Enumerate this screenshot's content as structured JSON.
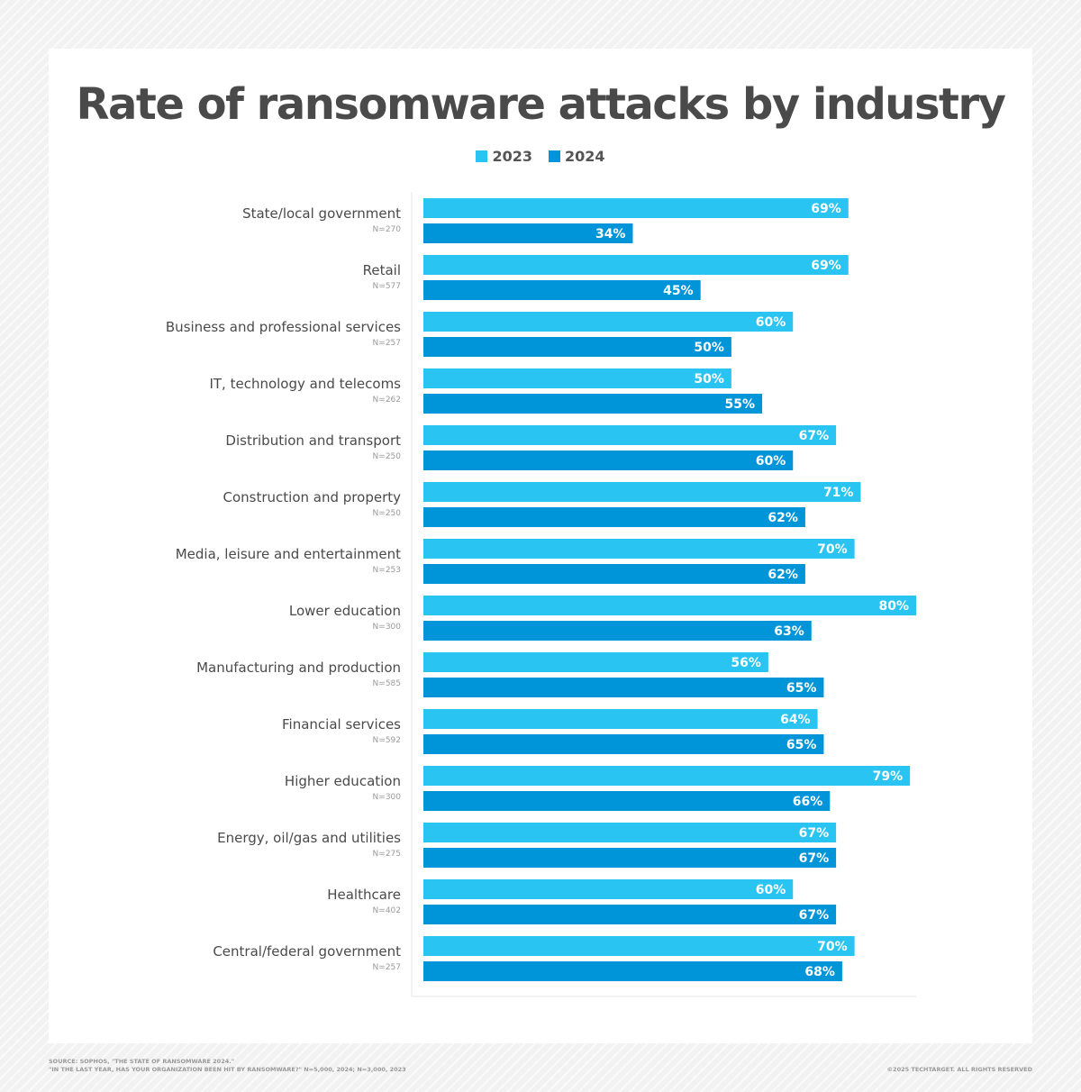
{
  "chart_data": {
    "type": "bar",
    "orientation": "horizontal",
    "title": "Rate of ransomware attacks by industry",
    "categories": [
      "State/local government",
      "Retail",
      "Business and professional services",
      "IT, technology and telecoms",
      "Distribution and transport",
      "Construction and property",
      "Media, leisure and entertainment",
      "Lower education",
      "Manufacturing and production",
      "Financial services",
      "Higher education",
      "Energy, oil/gas and utilities",
      "Healthcare",
      "Central/federal government"
    ],
    "sample_sizes": [
      "N=270",
      "N=577",
      "N=257",
      "N=262",
      "N=250",
      "N=250",
      "N=253",
      "N=300",
      "N=585",
      "N=592",
      "N=300",
      "N=275",
      "N=402",
      "N=257"
    ],
    "series": [
      {
        "name": "2023",
        "color": "#2ac4f2",
        "values": [
          69,
          69,
          60,
          50,
          67,
          71,
          70,
          80,
          56,
          64,
          79,
          67,
          60,
          70
        ]
      },
      {
        "name": "2024",
        "color": "#0095d8",
        "values": [
          34,
          45,
          50,
          55,
          60,
          62,
          62,
          63,
          65,
          65,
          66,
          67,
          67,
          68
        ]
      }
    ],
    "value_suffix": "%",
    "xlim": [
      0,
      80
    ],
    "grid": false,
    "legend_position": "top-center"
  },
  "footer": {
    "source": "SOURCE: SOPHOS, \"THE STATE OF RANSOMWARE 2024.\"",
    "question": "\"IN THE LAST YEAR, HAS YOUR ORGANIZATION BEEN HIT BY RANSOMWARE?\" N=5,000, 2024; N=3,000, 2023",
    "copyright": "©2025 TECHTARGET. ALL RIGHTS RESERVED"
  }
}
